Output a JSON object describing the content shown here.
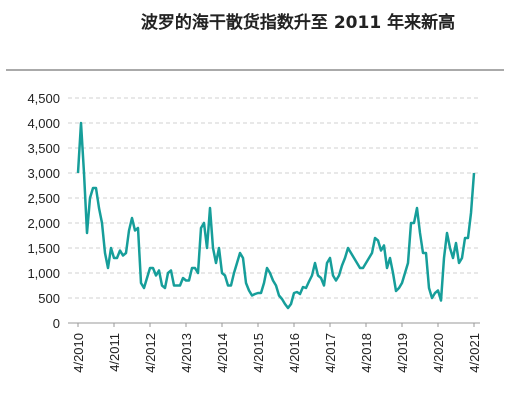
{
  "chart_data": {
    "type": "line",
    "title": "波罗的海干散货指数升至 2011 年来新高",
    "color": "#169e9a",
    "grid": true,
    "categories": [
      "4/2010",
      null,
      null,
      null,
      null,
      null,
      null,
      null,
      null,
      null,
      null,
      null,
      "4/2011",
      null,
      null,
      null,
      null,
      null,
      null,
      null,
      null,
      null,
      null,
      null,
      "4/2012",
      null,
      null,
      null,
      null,
      null,
      null,
      null,
      null,
      null,
      null,
      null,
      "4/2013",
      null,
      null,
      null,
      null,
      null,
      null,
      null,
      null,
      null,
      null,
      null,
      "4/2014",
      null,
      null,
      null,
      null,
      null,
      null,
      null,
      null,
      null,
      null,
      null,
      "4/2015",
      null,
      null,
      null,
      null,
      null,
      null,
      null,
      null,
      null,
      null,
      null,
      "4/2016",
      null,
      null,
      null,
      null,
      null,
      null,
      null,
      null,
      null,
      null,
      null,
      "4/2017",
      null,
      null,
      null,
      null,
      null,
      null,
      null,
      null,
      null,
      null,
      null,
      "4/2018",
      null,
      null,
      null,
      null,
      null,
      null,
      null,
      null,
      null,
      null,
      null,
      "4/2019",
      null,
      null,
      null,
      null,
      null,
      null,
      null,
      null,
      null,
      null,
      null,
      "4/2020",
      null,
      null,
      null,
      null,
      null,
      null,
      null,
      null,
      null,
      null,
      null,
      "4/2021"
    ],
    "values": [
      3000,
      4000,
      3000,
      1800,
      2500,
      2700,
      2700,
      2300,
      2000,
      1400,
      1100,
      1500,
      1300,
      1300,
      1450,
      1350,
      1400,
      1850,
      2100,
      1850,
      1900,
      800,
      700,
      900,
      1100,
      1100,
      950,
      1050,
      750,
      700,
      1000,
      1050,
      750,
      750,
      750,
      900,
      850,
      850,
      1100,
      1100,
      1000,
      1900,
      2000,
      1500,
      2300,
      1500,
      1200,
      1500,
      1000,
      950,
      750,
      750,
      1000,
      1200,
      1400,
      1300,
      800,
      650,
      550,
      580,
      600,
      600,
      800,
      1100,
      1000,
      850,
      750,
      550,
      480,
      380,
      300,
      380,
      600,
      620,
      580,
      720,
      700,
      830,
      950,
      1200,
      950,
      900,
      750,
      1200,
      1300,
      950,
      850,
      950,
      1150,
      1300,
      1500,
      1400,
      1300,
      1200,
      1100,
      1100,
      1200,
      1300,
      1400,
      1700,
      1650,
      1450,
      1550,
      1100,
      1300,
      1000,
      640,
      700,
      800,
      1000,
      1200,
      2000,
      2000,
      2300,
      1800,
      1400,
      1400,
      700,
      500,
      600,
      650,
      450,
      1300,
      1800,
      1500,
      1300,
      1600,
      1200,
      1300,
      1700,
      1700,
      2200,
      3000
    ],
    "ylim": [
      0,
      4500
    ],
    "yticks": [
      0,
      500,
      {
        "value": 1000,
        "label": "1,000"
      },
      {
        "value": 1500,
        "label": "1,500"
      },
      {
        "value": 2000,
        "label": "2,000"
      },
      {
        "value": 2500,
        "label": "2,500"
      },
      {
        "value": 3000,
        "label": "3,000"
      },
      {
        "value": 3500,
        "label": "3,500"
      },
      {
        "value": 4000,
        "label": "4,000"
      },
      {
        "value": 4500,
        "label": "4,500"
      }
    ]
  }
}
